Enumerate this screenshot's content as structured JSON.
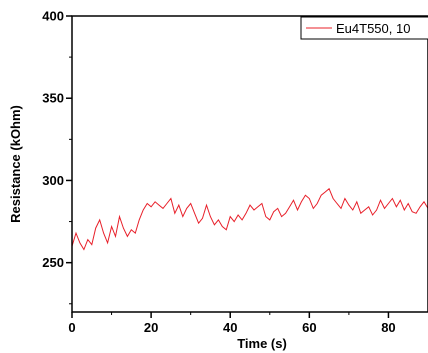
{
  "chart_data": {
    "type": "line",
    "title": "",
    "xlabel": "Time (s)",
    "ylabel": "Resistance (kOhm)",
    "xlim": [
      0,
      90
    ],
    "ylim": [
      220,
      400
    ],
    "xticks": [
      0,
      20,
      40,
      60,
      80
    ],
    "yticks": [
      250,
      300,
      350,
      400
    ],
    "x_tick_labels": [
      "0",
      "20",
      "40",
      "60",
      "80"
    ],
    "y_tick_labels": [
      "250",
      "300",
      "350",
      "400"
    ],
    "grid": false,
    "legend_position": "top-right",
    "series": [
      {
        "name": "Eu4T550, 10",
        "color": "#e8202a",
        "x": [
          0,
          1,
          2,
          3,
          4,
          5,
          6,
          7,
          8,
          9,
          10,
          11,
          12,
          13,
          14,
          15,
          16,
          17,
          18,
          19,
          20,
          21,
          22,
          23,
          24,
          25,
          26,
          27,
          28,
          29,
          30,
          31,
          32,
          33,
          34,
          35,
          36,
          37,
          38,
          39,
          40,
          41,
          42,
          43,
          44,
          45,
          46,
          47,
          48,
          49,
          50,
          51,
          52,
          53,
          54,
          55,
          56,
          57,
          58,
          59,
          60,
          61,
          62,
          63,
          64,
          65,
          66,
          67,
          68,
          69,
          70,
          71,
          72,
          73,
          74,
          75,
          76,
          77,
          78,
          79,
          80,
          81,
          82,
          83,
          84,
          85,
          86,
          87,
          88,
          89,
          90
        ],
        "values": [
          260,
          268,
          262,
          258,
          264,
          261,
          271,
          276,
          268,
          262,
          272,
          266,
          278,
          271,
          266,
          270,
          268,
          276,
          282,
          286,
          284,
          287,
          285,
          283,
          286,
          289,
          280,
          285,
          278,
          283,
          286,
          280,
          274,
          277,
          285,
          278,
          273,
          276,
          272,
          270,
          278,
          275,
          279,
          276,
          280,
          285,
          282,
          284,
          286,
          278,
          276,
          281,
          283,
          278,
          280,
          284,
          288,
          282,
          287,
          291,
          289,
          283,
          286,
          291,
          293,
          295,
          289,
          286,
          283,
          289,
          285,
          282,
          287,
          280,
          282,
          284,
          279,
          282,
          288,
          283,
          286,
          289,
          284,
          288,
          282,
          286,
          281,
          280,
          284,
          287,
          283
        ]
      }
    ]
  }
}
